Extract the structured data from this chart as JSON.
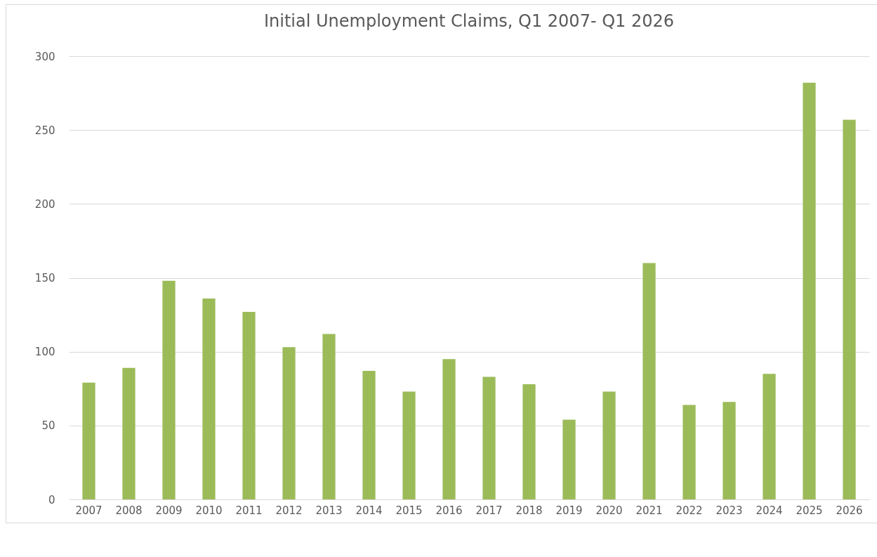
{
  "chart_data": {
    "type": "bar",
    "title": "Initial Unemployment Claims, Q1 2007- Q1 2026",
    "categories": [
      "2007",
      "2008",
      "2009",
      "2010",
      "2011",
      "2012",
      "2013",
      "2014",
      "2015",
      "2016",
      "2017",
      "2018",
      "2019",
      "2020",
      "2021",
      "2022",
      "2023",
      "2024",
      "2025",
      "2026"
    ],
    "values": [
      79,
      89,
      148,
      136,
      127,
      103,
      112,
      87,
      73,
      95,
      83,
      78,
      54,
      73,
      160,
      64,
      66,
      85,
      282,
      257
    ],
    "color": "#9bbb59",
    "ylim": [
      0,
      300
    ],
    "yticks": [
      0,
      50,
      100,
      150,
      200,
      250,
      300
    ],
    "grid": "y"
  }
}
